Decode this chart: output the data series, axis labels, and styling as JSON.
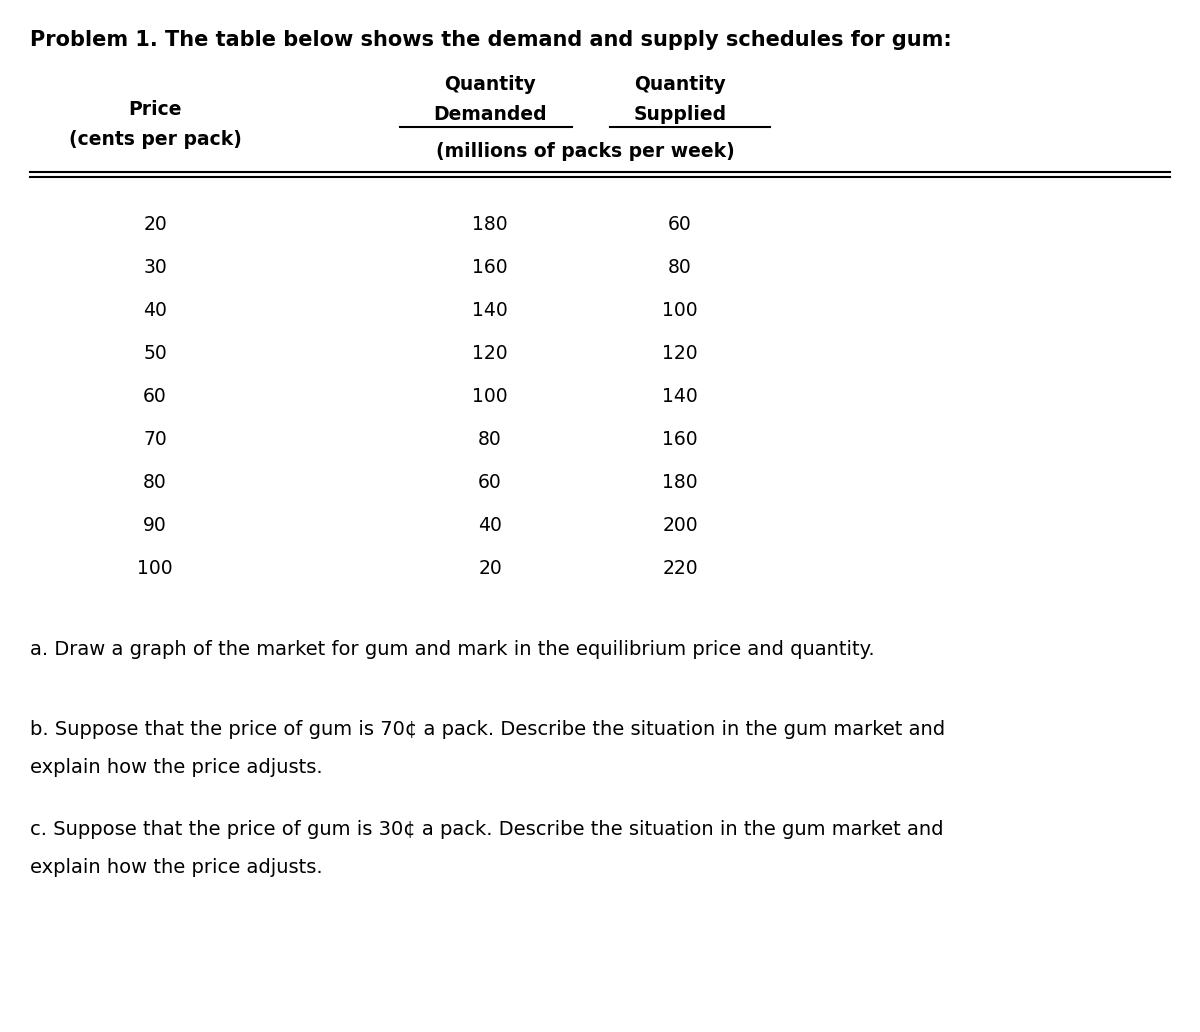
{
  "title": "Problem 1. The table below shows the demand and supply schedules for gum:",
  "prices": [
    20,
    30,
    40,
    50,
    60,
    70,
    80,
    90,
    100
  ],
  "qty_demanded": [
    180,
    160,
    140,
    120,
    100,
    80,
    60,
    40,
    20
  ],
  "qty_supplied": [
    60,
    80,
    100,
    120,
    140,
    160,
    180,
    200,
    220
  ],
  "question_a": "a. Draw a graph of the market for gum and mark in the equilibrium price and quantity.",
  "question_b1": "b. Suppose that the price of gum is 70¢ a pack. Describe the situation in the gum market and",
  "question_b2": "explain how the price adjusts.",
  "question_c1": "c. Suppose that the price of gum is 30¢ a pack. Describe the situation in the gum market and",
  "question_c2": "explain how the price adjusts.",
  "bg_color": "#ffffff",
  "text_color": "#000000",
  "fig_width": 12.0,
  "fig_height": 10.32,
  "dpi": 100
}
